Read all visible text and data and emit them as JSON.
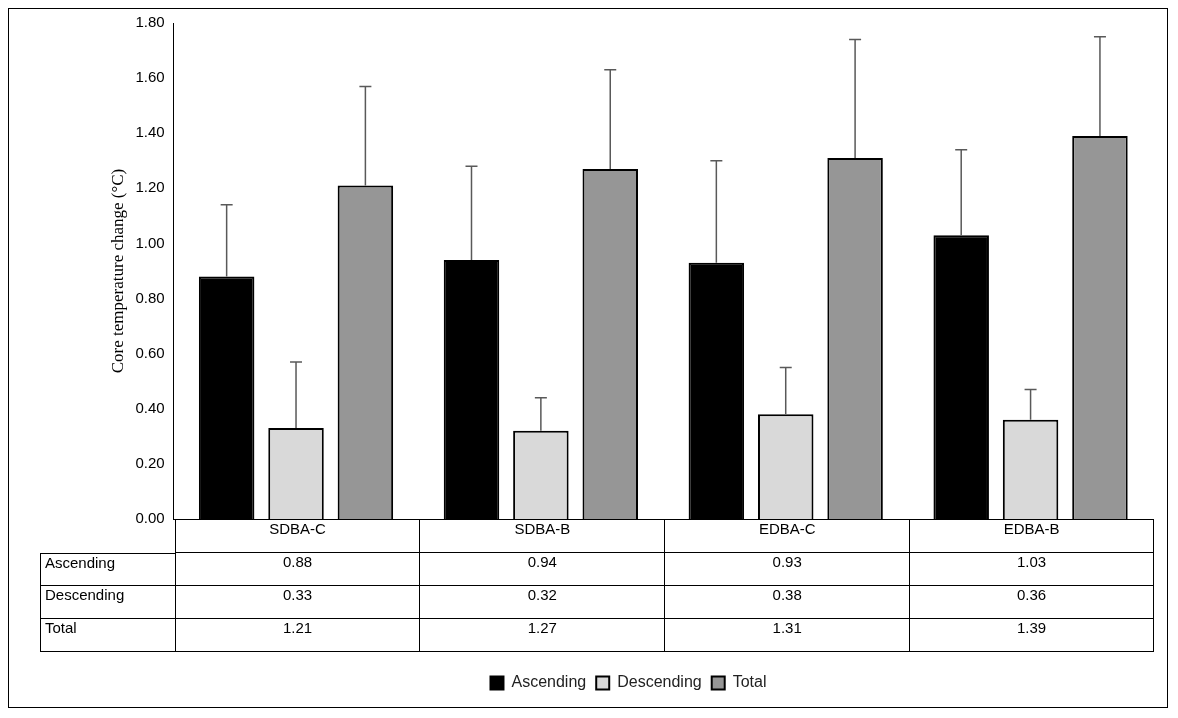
{
  "chart_data": {
    "type": "bar",
    "ylabel": "Core temperature change (°C)",
    "categories": [
      "SDBA-C",
      "SDBA-B",
      "EDBA-C",
      "EDBA-B"
    ],
    "series": [
      {
        "name": "Ascending",
        "color": "#000000",
        "values": [
          0.88,
          0.94,
          0.93,
          1.03
        ],
        "errors": [
          [
            0.88,
            1.14
          ],
          [
            0.94,
            1.28
          ],
          [
            0.93,
            1.3
          ],
          [
            1.03,
            1.34
          ]
        ]
      },
      {
        "name": "Descending",
        "color": "#d9d9d9",
        "values": [
          0.33,
          0.32,
          0.38,
          0.36
        ],
        "errors": [
          [
            0.33,
            0.57
          ],
          [
            0.32,
            0.44
          ],
          [
            0.38,
            0.55
          ],
          [
            0.36,
            0.47
          ]
        ]
      },
      {
        "name": "Total",
        "color": "#969696",
        "values": [
          1.21,
          1.27,
          1.31,
          1.39
        ],
        "errors": [
          [
            1.21,
            1.57
          ],
          [
            1.27,
            1.63
          ],
          [
            1.31,
            1.74
          ],
          [
            1.39,
            1.75
          ]
        ]
      }
    ],
    "ylim": [
      0,
      1.8
    ],
    "yticks": [
      {
        "value": 0,
        "label": "0.00"
      },
      {
        "value": 0.2,
        "label": "0.20"
      },
      {
        "value": 0.4,
        "label": "0.40"
      },
      {
        "value": 0.6,
        "label": "0.60"
      },
      {
        "value": 0.8,
        "label": "0.80"
      },
      {
        "value": 1,
        "label": "1.00"
      },
      {
        "value": 1.2,
        "label": "1.20"
      },
      {
        "value": 1.4,
        "label": "1.40"
      },
      {
        "value": 1.6,
        "label": "1.60"
      },
      {
        "value": 1.8,
        "label": "1.80"
      }
    ],
    "grid": false,
    "legend": "bottom",
    "data_labels": true
  }
}
